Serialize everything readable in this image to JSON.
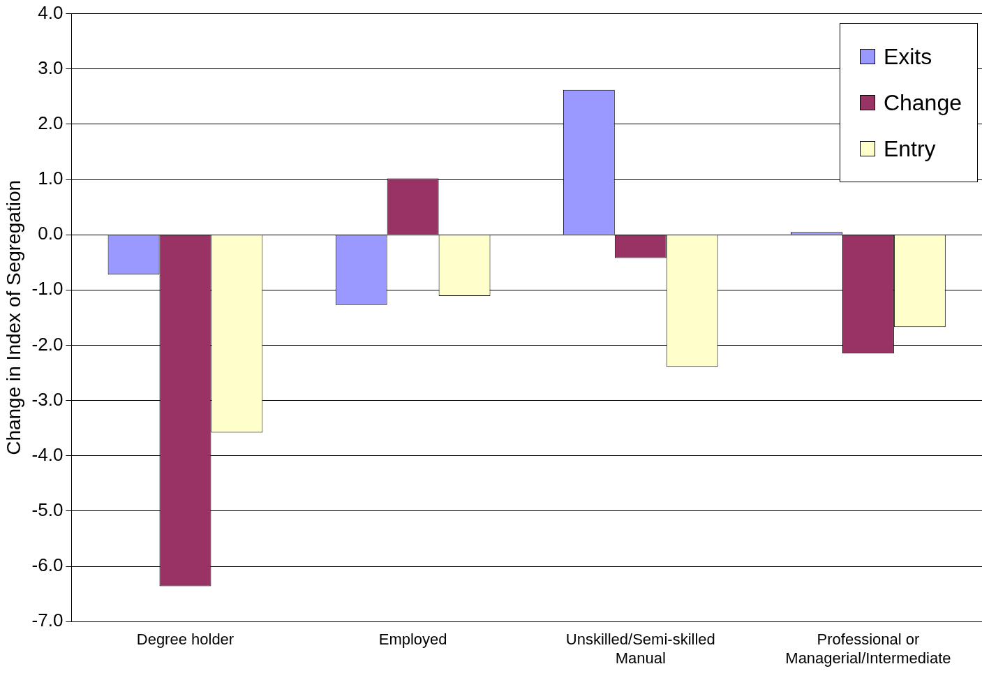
{
  "chart_data": {
    "type": "bar",
    "ylabel": "Change in Index of Segregation",
    "categories": [
      "Degree holder",
      "Employed",
      "Unskilled/Semi-skilled Manual",
      "Professional or Managerial/Intermediate"
    ],
    "series": [
      {
        "name": "Exits",
        "color": "#9999ff",
        "values": [
          -0.72,
          -1.27,
          2.62,
          0.05
        ]
      },
      {
        "name": "Change",
        "color": "#993366",
        "values": [
          -6.36,
          1.02,
          -0.42,
          -2.15
        ]
      },
      {
        "name": "Entry",
        "color": "#ffffcc",
        "values": [
          -3.58,
          -1.11,
          -2.39,
          -1.67
        ]
      }
    ],
    "ylim": [
      -7,
      4
    ],
    "yticks": [
      {
        "value": 4,
        "label": "4.0"
      },
      {
        "value": 3,
        "label": "3.0"
      },
      {
        "value": 2,
        "label": "2.0"
      },
      {
        "value": 1,
        "label": "1.0"
      },
      {
        "value": 0,
        "label": "0.0"
      },
      {
        "value": -1,
        "label": "-1.0"
      },
      {
        "value": -2,
        "label": "-2.0"
      },
      {
        "value": -3,
        "label": "-3.0"
      },
      {
        "value": -4,
        "label": "-4.0"
      },
      {
        "value": -5,
        "label": "-5.0"
      },
      {
        "value": -6,
        "label": "-6.0"
      },
      {
        "value": -7,
        "label": "-7.0"
      }
    ],
    "grid": "y",
    "legend": "top right"
  }
}
